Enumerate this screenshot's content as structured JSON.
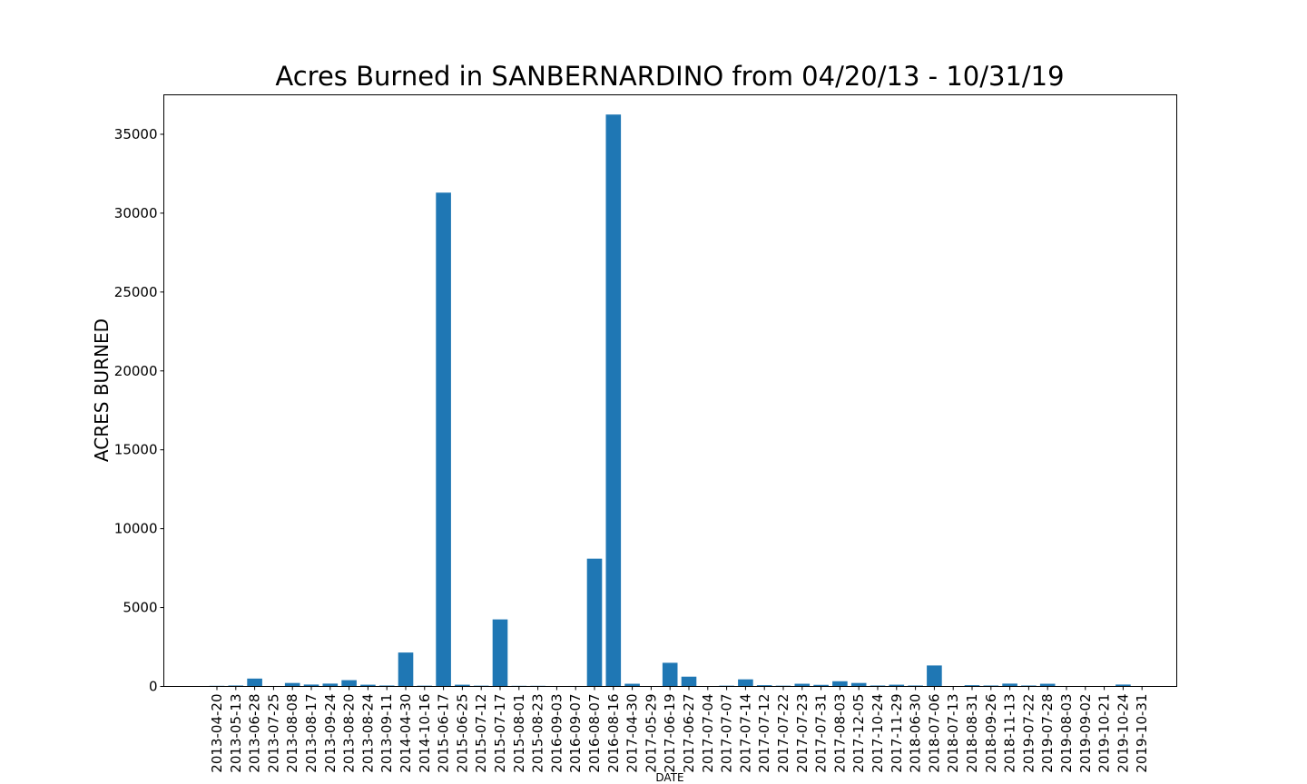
{
  "chart_data": {
    "type": "bar",
    "title": "Acres Burned in SANBERNARDINO from 04/20/13 - 10/31/19",
    "xlabel": "DATE",
    "ylabel": "ACRES BURNED",
    "ylim": [
      0,
      37500
    ],
    "yticks": [
      0,
      5000,
      10000,
      15000,
      20000,
      25000,
      30000,
      35000
    ],
    "grid": false,
    "bar_color": "#1f77b4",
    "categories": [
      "2013-04-20",
      "2013-05-13",
      "2013-06-28",
      "2013-07-25",
      "2013-08-08",
      "2013-08-17",
      "2013-09-24",
      "2013-08-20",
      "2013-08-24",
      "2013-09-11",
      "2014-04-30",
      "2014-10-16",
      "2015-06-17",
      "2015-06-25",
      "2015-07-12",
      "2015-07-17",
      "2015-08-01",
      "2015-08-23",
      "2016-09-03",
      "2016-09-07",
      "2016-08-07",
      "2016-08-16",
      "2017-04-30",
      "2017-05-29",
      "2017-06-19",
      "2017-06-27",
      "2017-07-04",
      "2017-07-07",
      "2017-07-14",
      "2017-07-12",
      "2017-07-22",
      "2017-07-23",
      "2017-07-31",
      "2017-08-03",
      "2017-12-05",
      "2017-10-24",
      "2017-11-29",
      "2018-06-30",
      "2018-07-06",
      "2018-07-13",
      "2018-08-31",
      "2018-09-26",
      "2018-11-13",
      "2019-07-22",
      "2019-07-28",
      "2019-08-03",
      "2019-09-02",
      "2019-10-21",
      "2019-10-24",
      "2019-10-31"
    ],
    "values": [
      40,
      60,
      500,
      30,
      220,
      120,
      180,
      400,
      110,
      60,
      2150,
      50,
      31300,
      110,
      50,
      4250,
      40,
      40,
      10,
      30,
      8100,
      36250,
      170,
      10,
      1500,
      620,
      10,
      50,
      450,
      80,
      50,
      170,
      100,
      330,
      220,
      60,
      110,
      60,
      1330,
      10,
      80,
      60,
      180,
      60,
      170,
      10,
      10,
      10,
      120,
      10
    ]
  }
}
